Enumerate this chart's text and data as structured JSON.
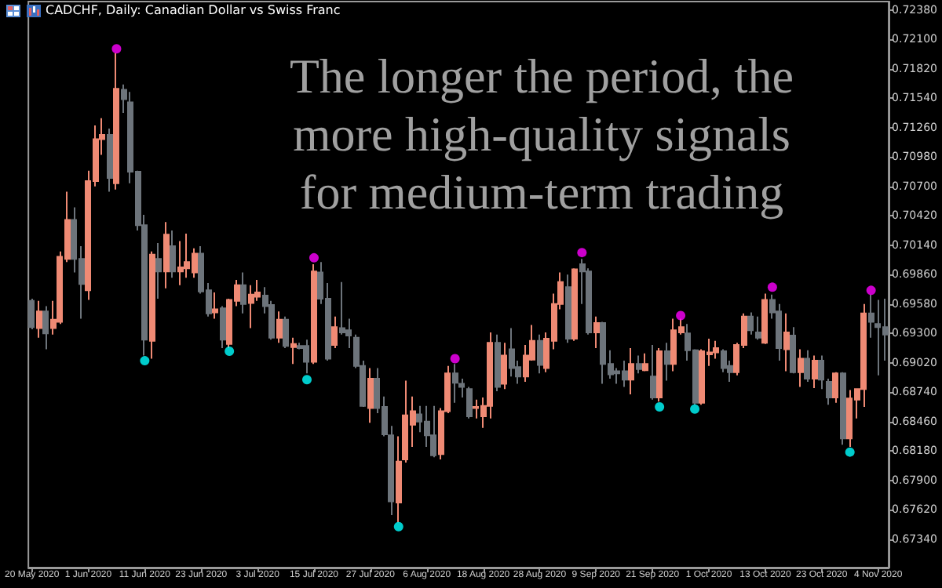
{
  "chart_data": {
    "type": "candlestick",
    "title": "CADCHF, Daily:  Canadian Dollar vs Swiss Franc",
    "annotations": [
      "The longer the period, the more high-quality signals for medium-term trading"
    ],
    "categories": [
      "20 May 2020",
      null,
      null,
      null,
      null,
      null,
      null,
      null,
      "1 Jun 2020",
      null,
      null,
      null,
      null,
      null,
      null,
      null,
      "11 Jun 2020",
      null,
      null,
      null,
      null,
      null,
      null,
      null,
      "23 Jun 2020",
      null,
      null,
      null,
      null,
      null,
      null,
      null,
      "3 Jul 2020",
      null,
      null,
      null,
      null,
      null,
      null,
      null,
      "15 Jul 2020",
      null,
      null,
      null,
      null,
      null,
      null,
      null,
      "27 Jul 2020",
      null,
      null,
      null,
      null,
      null,
      null,
      null,
      "6 Aug 2020",
      null,
      null,
      null,
      null,
      null,
      null,
      null,
      "18 Aug 2020",
      null,
      null,
      null,
      null,
      null,
      null,
      null,
      "28 Aug 2020",
      null,
      null,
      null,
      null,
      null,
      null,
      null,
      "9 Sep 2020",
      null,
      null,
      null,
      null,
      null,
      null,
      null,
      "21 Sep 2020",
      null,
      null,
      null,
      null,
      null,
      null,
      null,
      "1 Oct 2020",
      null,
      null,
      null,
      null,
      null,
      null,
      null,
      "13 Oct 2020",
      null,
      null,
      null,
      null,
      null,
      null,
      null,
      "23 Oct 2020",
      null,
      null,
      null,
      null,
      null,
      null,
      null,
      "4 Nov 2020",
      null
    ],
    "ohlc": [
      [
        0.6961,
        0.6963,
        0.6934,
        0.6936
      ],
      [
        0.6935,
        0.6961,
        0.6926,
        0.6951
      ],
      [
        0.6951,
        0.6956,
        0.6915,
        0.693
      ],
      [
        0.6935,
        0.6961,
        0.6929,
        0.6943
      ],
      [
        0.6941,
        0.7008,
        0.6939,
        0.7003
      ],
      [
        0.7001,
        0.7065,
        0.6998,
        0.7038
      ],
      [
        0.7038,
        0.705,
        0.6988,
        0.7001
      ],
      [
        0.7001,
        0.7013,
        0.6944,
        0.6977
      ],
      [
        0.6971,
        0.7085,
        0.6962,
        0.7075
      ],
      [
        0.7075,
        0.7128,
        0.707,
        0.7115
      ],
      [
        0.7115,
        0.7135,
        0.71,
        0.7119
      ],
      [
        0.7119,
        0.7125,
        0.7065,
        0.7078
      ],
      [
        0.7073,
        0.7197,
        0.7067,
        0.7163
      ],
      [
        0.7162,
        0.7167,
        0.714,
        0.7153
      ],
      [
        0.715,
        0.716,
        0.7073,
        0.7084
      ],
      [
        0.7084,
        0.7085,
        0.7028,
        0.7033
      ],
      [
        0.7033,
        0.7043,
        0.6909,
        0.6924
      ],
      [
        0.6923,
        0.7008,
        0.6906,
        0.7005
      ],
      [
        0.7001,
        0.7016,
        0.6963,
        0.6989
      ],
      [
        0.6989,
        0.7036,
        0.6973,
        0.7024
      ],
      [
        0.7013,
        0.7028,
        0.6983,
        0.6989
      ],
      [
        0.6989,
        0.7018,
        0.6976,
        0.6993
      ],
      [
        0.6992,
        0.7025,
        0.6983,
        0.6998
      ],
      [
        0.6988,
        0.7011,
        0.6983,
        0.7006
      ],
      [
        0.7006,
        0.7013,
        0.6968,
        0.697
      ],
      [
        0.6971,
        0.6978,
        0.6946,
        0.6949
      ],
      [
        0.695,
        0.6969,
        0.6944,
        0.6953
      ],
      [
        0.6954,
        0.6956,
        0.6916,
        0.6924
      ],
      [
        0.692,
        0.6963,
        0.6916,
        0.6962
      ],
      [
        0.6961,
        0.6981,
        0.6956,
        0.6976
      ],
      [
        0.6976,
        0.6988,
        0.6949,
        0.6958
      ],
      [
        0.6959,
        0.6976,
        0.6935,
        0.6967
      ],
      [
        0.6965,
        0.6981,
        0.6961,
        0.6969
      ],
      [
        0.6966,
        0.6974,
        0.6949,
        0.6956
      ],
      [
        0.6957,
        0.6961,
        0.6924,
        0.6926
      ],
      [
        0.6926,
        0.6951,
        0.6921,
        0.6943
      ],
      [
        0.6943,
        0.6946,
        0.6916,
        0.6918
      ],
      [
        0.6917,
        0.6926,
        0.6901,
        0.692
      ],
      [
        0.6918,
        0.6921,
        0.6915,
        0.6916
      ],
      [
        0.6918,
        0.6924,
        0.6892,
        0.6903
      ],
      [
        0.6903,
        0.6996,
        0.6901,
        0.6989
      ],
      [
        0.6988,
        0.6998,
        0.6958,
        0.6963
      ],
      [
        0.6963,
        0.6978,
        0.6904,
        0.6906
      ],
      [
        0.6919,
        0.6946,
        0.6916,
        0.6936
      ],
      [
        0.6935,
        0.6979,
        0.6929,
        0.6931
      ],
      [
        0.6933,
        0.6944,
        0.6916,
        0.6928
      ],
      [
        0.6926,
        0.6929,
        0.6897,
        0.6899
      ],
      [
        0.6899,
        0.6904,
        0.686,
        0.6861
      ],
      [
        0.6859,
        0.6897,
        0.6845,
        0.6887
      ],
      [
        0.6887,
        0.6897,
        0.6854,
        0.6859
      ],
      [
        0.686,
        0.687,
        0.6832,
        0.6834
      ],
      [
        0.6833,
        0.6842,
        0.6757,
        0.677
      ],
      [
        0.6769,
        0.6832,
        0.675,
        0.6808
      ],
      [
        0.681,
        0.6885,
        0.6807,
        0.6852
      ],
      [
        0.6843,
        0.687,
        0.6822,
        0.6856
      ],
      [
        0.6853,
        0.6861,
        0.6836,
        0.6846
      ],
      [
        0.6846,
        0.6861,
        0.6822,
        0.6833
      ],
      [
        0.6833,
        0.6861,
        0.6812,
        0.6814
      ],
      [
        0.6815,
        0.6859,
        0.681,
        0.6856
      ],
      [
        0.6856,
        0.6899,
        0.6854,
        0.6892
      ],
      [
        0.6892,
        0.6901,
        0.6864,
        0.6883
      ],
      [
        0.6882,
        0.6887,
        0.6869,
        0.6879
      ],
      [
        0.6877,
        0.6879,
        0.6849,
        0.6851
      ],
      [
        0.6859,
        0.6867,
        0.6849,
        0.686
      ],
      [
        0.6851,
        0.6869,
        0.684,
        0.6861
      ],
      [
        0.6861,
        0.6931,
        0.6849,
        0.6921
      ],
      [
        0.6921,
        0.6929,
        0.6875,
        0.6879
      ],
      [
        0.6882,
        0.6921,
        0.6877,
        0.6909
      ],
      [
        0.6915,
        0.6935,
        0.6889,
        0.6897
      ],
      [
        0.6898,
        0.6904,
        0.6882,
        0.6889
      ],
      [
        0.6889,
        0.6919,
        0.6884,
        0.6909
      ],
      [
        0.6905,
        0.6938,
        0.6904,
        0.6923
      ],
      [
        0.6923,
        0.6929,
        0.6892,
        0.69
      ],
      [
        0.6897,
        0.6931,
        0.6893,
        0.6925
      ],
      [
        0.6923,
        0.6968,
        0.6915,
        0.6958
      ],
      [
        0.6958,
        0.6988,
        0.6953,
        0.6979
      ],
      [
        0.6974,
        0.6986,
        0.6921,
        0.6925
      ],
      [
        0.6925,
        0.6992,
        0.6923,
        0.6991
      ],
      [
        0.6996,
        0.7001,
        0.6958,
        0.6989
      ],
      [
        0.6989,
        0.6992,
        0.6929,
        0.6931
      ],
      [
        0.6931,
        0.6946,
        0.6916,
        0.694
      ],
      [
        0.694,
        0.6941,
        0.6882,
        0.6901
      ],
      [
        0.6901,
        0.6914,
        0.6887,
        0.6891
      ],
      [
        0.6894,
        0.6897,
        0.6882,
        0.6892
      ],
      [
        0.6894,
        0.6904,
        0.6879,
        0.6886
      ],
      [
        0.6886,
        0.6916,
        0.6872,
        0.6901
      ],
      [
        0.6901,
        0.6909,
        0.6892,
        0.6896
      ],
      [
        0.6895,
        0.6911,
        0.6894,
        0.6901
      ],
      [
        0.6889,
        0.6919,
        0.6867,
        0.6869
      ],
      [
        0.6869,
        0.6916,
        0.6865,
        0.6913
      ],
      [
        0.6913,
        0.6921,
        0.6885,
        0.6901
      ],
      [
        0.6901,
        0.6944,
        0.6894,
        0.6933
      ],
      [
        0.6931,
        0.6944,
        0.6929,
        0.6936
      ],
      [
        0.693,
        0.6939,
        0.6904,
        0.6914
      ],
      [
        0.6914,
        0.6915,
        0.6862,
        0.6864
      ],
      [
        0.6864,
        0.6915,
        0.6862,
        0.6913
      ],
      [
        0.691,
        0.6925,
        0.6899,
        0.6912
      ],
      [
        0.6912,
        0.6923,
        0.6906,
        0.6916
      ],
      [
        0.6913,
        0.6915,
        0.6893,
        0.6897
      ],
      [
        0.6899,
        0.6904,
        0.6884,
        0.6893
      ],
      [
        0.6893,
        0.6921,
        0.689,
        0.6919
      ],
      [
        0.6919,
        0.6949,
        0.6916,
        0.6946
      ],
      [
        0.6946,
        0.695,
        0.6929,
        0.6933
      ],
      [
        0.6931,
        0.6946,
        0.6924,
        0.6926
      ],
      [
        0.6921,
        0.6968,
        0.692,
        0.6962
      ],
      [
        0.6962,
        0.6967,
        0.6944,
        0.695
      ],
      [
        0.6951,
        0.6958,
        0.6904,
        0.6916
      ],
      [
        0.6915,
        0.6949,
        0.6894,
        0.6931
      ],
      [
        0.6928,
        0.6936,
        0.6892,
        0.6893
      ],
      [
        0.6893,
        0.6915,
        0.6879,
        0.6906
      ],
      [
        0.6906,
        0.6914,
        0.6884,
        0.6887
      ],
      [
        0.6887,
        0.6909,
        0.6878,
        0.6904
      ],
      [
        0.6904,
        0.6909,
        0.6877,
        0.6886
      ],
      [
        0.6884,
        0.6887,
        0.6862,
        0.6869
      ],
      [
        0.6869,
        0.6893,
        0.6864,
        0.6892
      ],
      [
        0.6892,
        0.6893,
        0.6824,
        0.683
      ],
      [
        0.683,
        0.6876,
        0.6822,
        0.6868
      ],
      [
        0.6867,
        0.6877,
        0.6849,
        0.6877
      ],
      [
        0.6877,
        0.6958,
        0.686,
        0.6949
      ],
      [
        0.6949,
        0.6967,
        0.6926,
        0.6941
      ],
      [
        0.6939,
        0.6962,
        0.689,
        0.6936
      ],
      [
        0.6936,
        0.6963,
        0.6904,
        0.6929
      ]
    ],
    "colors": [
      "#6d747b",
      "#ef8a74",
      "#6d747b",
      "#ef8a74",
      "#ef8a74",
      "#ef8a74",
      "#6d747b",
      "#6d747b",
      "#ef8a74",
      "#ef8a74",
      "#ef8a74",
      "#6d747b",
      "#ef8a74",
      "#6d747b",
      "#6d747b",
      "#6d747b",
      "#6d747b",
      "#ef8a74",
      "#6d747b",
      "#ef8a74",
      "#6d747b",
      "#ef8a74",
      "#ef8a74",
      "#ef8a74",
      "#6d747b",
      "#6d747b",
      "#ef8a74",
      "#6d747b",
      "#ef8a74",
      "#ef8a74",
      "#6d747b",
      "#ef8a74",
      "#ef8a74",
      "#6d747b",
      "#6d747b",
      "#ef8a74",
      "#6d747b",
      "#ef8a74",
      "#6d747b",
      "#6d747b",
      "#ef8a74",
      "#6d747b",
      "#6d747b",
      "#ef8a74",
      "#6d747b",
      "#6d747b",
      "#6d747b",
      "#6d747b",
      "#ef8a74",
      "#6d747b",
      "#6d747b",
      "#6d747b",
      "#ef8a74",
      "#ef8a74",
      "#ef8a74",
      "#6d747b",
      "#6d747b",
      "#6d747b",
      "#ef8a74",
      "#ef8a74",
      "#6d747b",
      "#6d747b",
      "#6d747b",
      "#ef8a74",
      "#ef8a74",
      "#ef8a74",
      "#6d747b",
      "#ef8a74",
      "#6d747b",
      "#6d747b",
      "#ef8a74",
      "#ef8a74",
      "#6d747b",
      "#ef8a74",
      "#ef8a74",
      "#ef8a74",
      "#6d747b",
      "#ef8a74",
      "#6d747b",
      "#6d747b",
      "#ef8a74",
      "#6d747b",
      "#6d747b",
      "#6d747b",
      "#6d747b",
      "#ef8a74",
      "#6d747b",
      "#ef8a74",
      "#6d747b",
      "#ef8a74",
      "#6d747b",
      "#ef8a74",
      "#ef8a74",
      "#6d747b",
      "#6d747b",
      "#ef8a74",
      "#ef8a74",
      "#ef8a74",
      "#6d747b",
      "#6d747b",
      "#ef8a74",
      "#ef8a74",
      "#6d747b",
      "#6d747b",
      "#ef8a74",
      "#6d747b",
      "#6d747b",
      "#ef8a74",
      "#6d747b",
      "#ef8a74",
      "#6d747b",
      "#ef8a74",
      "#6d747b",
      "#6d747b",
      "#ef8a74",
      "#6d747b",
      "#ef8a74",
      "#ef8a74",
      "#ef8a74",
      "#6d747b",
      "#6d747b",
      "#6d747b"
    ],
    "series": [
      {
        "type": "scatter",
        "color": "#ff00ff",
        "values": [
          null,
          null,
          null,
          null,
          null,
          null,
          null,
          null,
          null,
          null,
          null,
          null,
          0.7201,
          null,
          null,
          null,
          null,
          null,
          null,
          null,
          null,
          null,
          null,
          null,
          null,
          null,
          null,
          null,
          null,
          null,
          null,
          null,
          null,
          null,
          null,
          null,
          null,
          null,
          null,
          null,
          0.7002,
          null,
          null,
          null,
          null,
          null,
          null,
          null,
          null,
          null,
          null,
          null,
          null,
          null,
          null,
          null,
          null,
          null,
          null,
          null,
          0.6906,
          null,
          null,
          null,
          null,
          null,
          null,
          null,
          null,
          null,
          null,
          null,
          null,
          null,
          null,
          null,
          null,
          null,
          0.7007,
          null,
          null,
          null,
          null,
          null,
          null,
          null,
          null,
          null,
          null,
          null,
          null,
          null,
          0.6947,
          null,
          null,
          null,
          null,
          null,
          null,
          null,
          null,
          null,
          null,
          null,
          null,
          0.6974,
          null,
          null,
          null,
          null,
          null,
          null,
          null,
          null,
          null,
          null,
          null,
          null,
          null,
          0.6971,
          null,
          null
        ]
      },
      {
        "type": "scatter",
        "color": "#00ffff",
        "values": [
          null,
          null,
          null,
          null,
          null,
          null,
          null,
          null,
          null,
          null,
          null,
          null,
          null,
          null,
          null,
          null,
          0.6904,
          null,
          null,
          null,
          null,
          null,
          null,
          null,
          null,
          null,
          null,
          null,
          0.6913,
          null,
          null,
          null,
          null,
          null,
          null,
          null,
          null,
          null,
          null,
          0.6886,
          null,
          null,
          null,
          null,
          null,
          null,
          null,
          null,
          null,
          null,
          null,
          null,
          0.6746,
          null,
          null,
          null,
          null,
          null,
          null,
          null,
          null,
          null,
          null,
          null,
          null,
          null,
          null,
          null,
          null,
          null,
          null,
          null,
          null,
          null,
          null,
          null,
          null,
          null,
          null,
          null,
          null,
          null,
          null,
          null,
          null,
          null,
          null,
          null,
          null,
          0.686,
          null,
          null,
          null,
          null,
          0.6858,
          null,
          null,
          null,
          null,
          null,
          null,
          null,
          null,
          null,
          null,
          null,
          null,
          null,
          null,
          null,
          null,
          null,
          null,
          null,
          null,
          null,
          0.6817,
          null,
          null,
          null,
          null,
          null
        ]
      }
    ],
    "marker": "circle",
    "ylim": [
      0.6707,
      0.7246
    ],
    "yticks": [
      {
        "value": 0.7238,
        "label": "0.72380"
      },
      {
        "value": 0.721,
        "label": "0.72100"
      },
      {
        "value": 0.7182,
        "label": "0.71820"
      },
      {
        "value": 0.7154,
        "label": "0.71540"
      },
      {
        "value": 0.7126,
        "label": "0.71260"
      },
      {
        "value": 0.7098,
        "label": "0.70980"
      },
      {
        "value": 0.707,
        "label": "0.70700"
      },
      {
        "value": 0.7042,
        "label": "0.70420"
      },
      {
        "value": 0.7014,
        "label": "0.70140"
      },
      {
        "value": 0.6986,
        "label": "0.69860"
      },
      {
        "value": 0.6958,
        "label": "0.69580"
      },
      {
        "value": 0.693,
        "label": "0.69300"
      },
      {
        "value": 0.6902,
        "label": "0.69020"
      },
      {
        "value": 0.6874,
        "label": "0.68740"
      },
      {
        "value": 0.6846,
        "label": "0.68460"
      },
      {
        "value": 0.6818,
        "label": "0.68180"
      },
      {
        "value": 0.679,
        "label": "0.67900"
      },
      {
        "value": 0.6762,
        "label": "0.67620"
      },
      {
        "value": 0.6734,
        "label": "0.67340"
      }
    ]
  }
}
